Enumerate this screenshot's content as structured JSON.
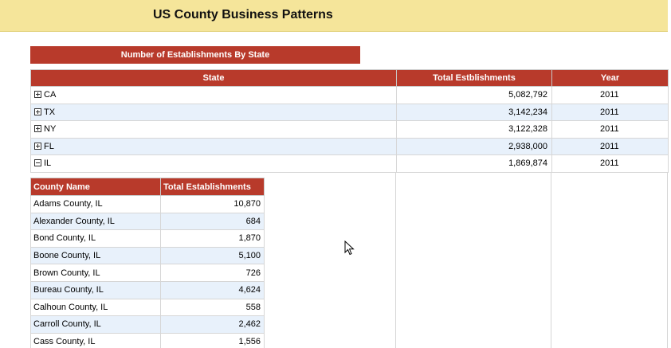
{
  "header": {
    "title": "US County Business Patterns"
  },
  "section": {
    "title": "Number of Establishments By State"
  },
  "state_table": {
    "columns": [
      "State",
      "Total Estblishments",
      "Year"
    ],
    "rows": [
      {
        "state": "CA",
        "total": "5,082,792",
        "year": "2011",
        "expanded": false
      },
      {
        "state": "TX",
        "total": "3,142,234",
        "year": "2011",
        "expanded": false
      },
      {
        "state": "NY",
        "total": "3,122,328",
        "year": "2011",
        "expanded": false
      },
      {
        "state": "FL",
        "total": "2,938,000",
        "year": "2011",
        "expanded": false
      },
      {
        "state": "IL",
        "total": "1,869,874",
        "year": "2011",
        "expanded": true
      }
    ]
  },
  "county_table": {
    "columns": [
      "County Name",
      "Total Establishments"
    ],
    "rows": [
      {
        "name": "Adams County, IL",
        "total": "10,870"
      },
      {
        "name": "Alexander County, IL",
        "total": "684"
      },
      {
        "name": "Bond County, IL",
        "total": "1,870"
      },
      {
        "name": "Boone County, IL",
        "total": "5,100"
      },
      {
        "name": "Brown County, IL",
        "total": "726"
      },
      {
        "name": "Bureau County, IL",
        "total": "4,624"
      },
      {
        "name": "Calhoun County, IL",
        "total": "558"
      },
      {
        "name": "Carroll County, IL",
        "total": "2,462"
      },
      {
        "name": "Cass County, IL",
        "total": "1,556"
      }
    ]
  },
  "colors": {
    "header_bg": "#f5e59a",
    "accent": "#b83a2b",
    "alt_row": "#e8f1fb"
  }
}
